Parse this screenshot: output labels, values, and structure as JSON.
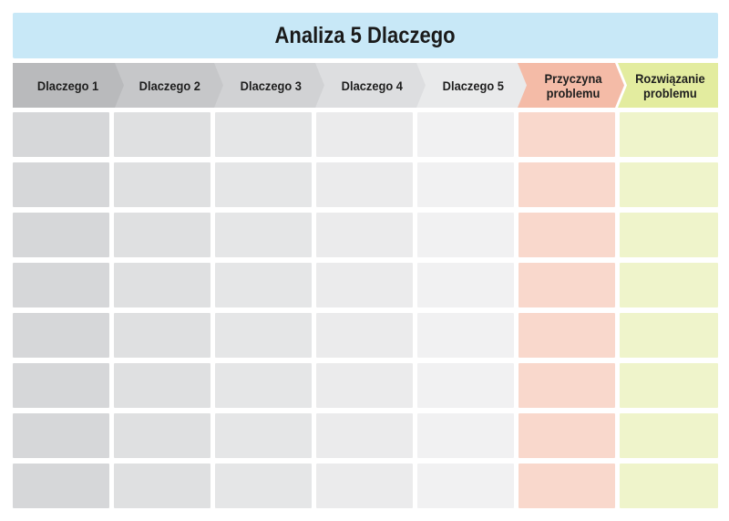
{
  "title": "Analiza 5 Dlaczego",
  "columns": [
    {
      "label": "Dlaczego 1",
      "color": "#b9babc",
      "cell_color": "#d6d7d9"
    },
    {
      "label": "Dlaczego 2",
      "color": "#c6c7c9",
      "cell_color": "#dfe0e1"
    },
    {
      "label": "Dlaczego 3",
      "color": "#d1d2d4",
      "cell_color": "#e5e6e7"
    },
    {
      "label": "Dlaczego 4",
      "color": "#dddee0",
      "cell_color": "#ebebec"
    },
    {
      "label": "Dlaczego 5",
      "color": "#e9eaeb",
      "cell_color": "#f1f1f2"
    },
    {
      "label": "Przyczyna\nproblemu",
      "color": "#f4bba7",
      "cell_color": "#f9d8cc"
    },
    {
      "label": "Rozwiązanie\nproblemu",
      "color": "#e3ec9f",
      "cell_color": "#eff4cb"
    }
  ],
  "row_count": 8
}
